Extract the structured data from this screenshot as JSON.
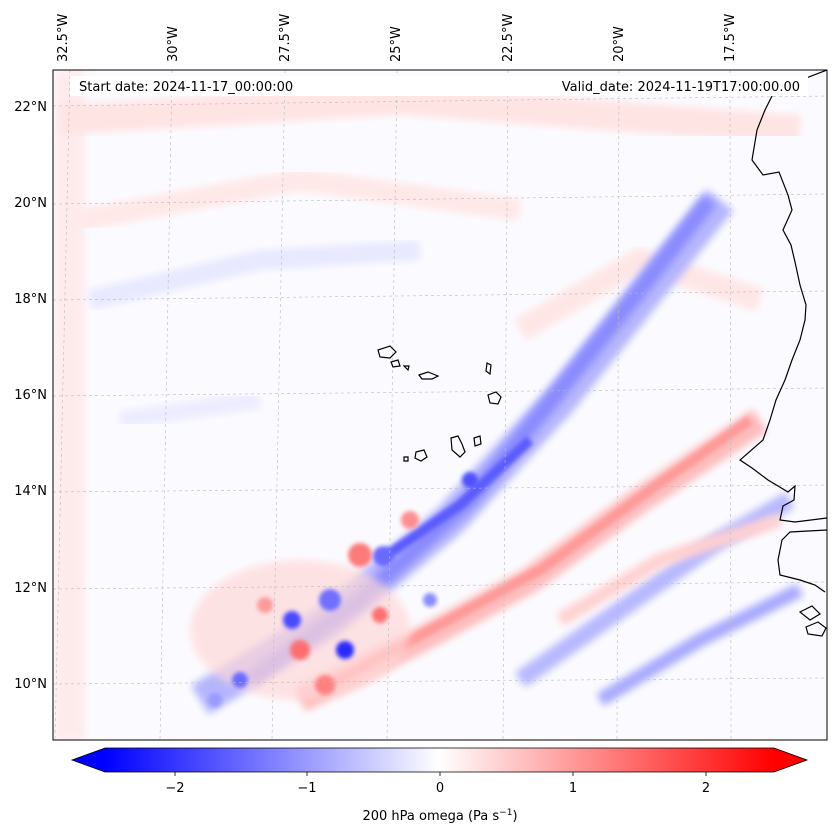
{
  "header": {
    "start_date": "Start date: 2024-11-17_00:00:00",
    "valid_date": "Valid_date: 2024-11-19T17:00:00.00"
  },
  "map": {
    "lon_labels": [
      "32.5°W",
      "30°W",
      "27.5°W",
      "25°W",
      "22.5°W",
      "20°W",
      "17.5°W"
    ],
    "lat_labels": [
      "22°N",
      "20°N",
      "18°N",
      "16°N",
      "14°N",
      "12°N",
      "10°N"
    ],
    "features": [
      "Cape Verde islands",
      "West African coastline"
    ]
  },
  "colorbar": {
    "ticks": [
      "−2",
      "−1",
      "0",
      "1",
      "2"
    ],
    "label_main": "200 hPa omega (Pa s",
    "label_sup": "−1",
    "label_end": ")",
    "min": -2.7,
    "max": 2.7,
    "colormap": "bwr",
    "neg_color": "#0000ff",
    "pos_color": "#ff0000"
  }
}
